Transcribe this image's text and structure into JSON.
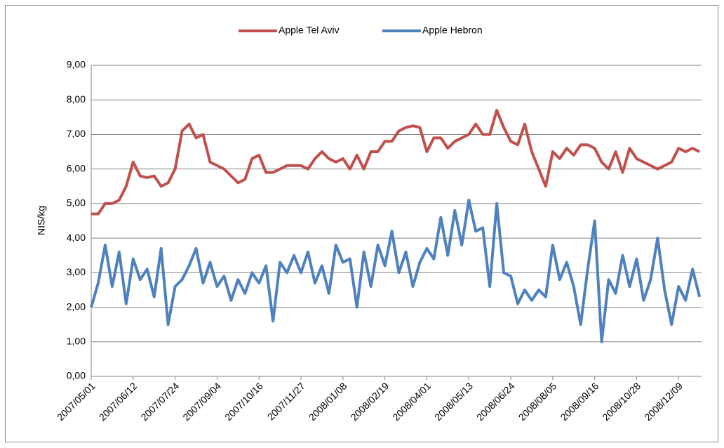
{
  "chart_data": {
    "type": "line",
    "y_label": "NIS/kg",
    "legend": "top",
    "grid": true,
    "ylim": [
      0,
      9
    ],
    "yticks": [
      {
        "value": 0,
        "label": "0,00"
      },
      {
        "value": 1,
        "label": "1,00"
      },
      {
        "value": 2,
        "label": "2,00"
      },
      {
        "value": 3,
        "label": "3,00"
      },
      {
        "value": 4,
        "label": "4,00"
      },
      {
        "value": 5,
        "label": "5,00"
      },
      {
        "value": 6,
        "label": "6,00"
      },
      {
        "value": 7,
        "label": "7,00"
      },
      {
        "value": 8,
        "label": "8,00"
      },
      {
        "value": 9,
        "label": "9,00"
      }
    ],
    "xlim": [
      "2007/05/01",
      "2009/01/01"
    ],
    "xticks": [
      "2007/05/01",
      "2007/06/12",
      "2007/07/24",
      "2007/09/04",
      "2007/10/16",
      "2007/11/27",
      "2008/01/08",
      "2008/02/19",
      "2008/04/01",
      "2008/05/13",
      "2008/06/24",
      "2008/08/05",
      "2008/09/16",
      "2008/10/28",
      "2008/12/09"
    ],
    "x": [
      "2007/05/01",
      "2007/05/08",
      "2007/05/15",
      "2007/05/22",
      "2007/05/29",
      "2007/06/05",
      "2007/06/12",
      "2007/06/19",
      "2007/06/26",
      "2007/07/03",
      "2007/07/10",
      "2007/07/17",
      "2007/07/24",
      "2007/07/31",
      "2007/08/07",
      "2007/08/14",
      "2007/08/21",
      "2007/08/28",
      "2007/09/04",
      "2007/09/11",
      "2007/09/18",
      "2007/09/25",
      "2007/10/02",
      "2007/10/09",
      "2007/10/16",
      "2007/10/23",
      "2007/10/30",
      "2007/11/06",
      "2007/11/13",
      "2007/11/20",
      "2007/11/27",
      "2007/12/04",
      "2007/12/11",
      "2007/12/18",
      "2007/12/25",
      "2008/01/01",
      "2008/01/08",
      "2008/01/15",
      "2008/01/22",
      "2008/01/29",
      "2008/02/05",
      "2008/02/12",
      "2008/02/19",
      "2008/02/26",
      "2008/03/04",
      "2008/03/11",
      "2008/03/18",
      "2008/03/25",
      "2008/04/01",
      "2008/04/08",
      "2008/04/15",
      "2008/04/22",
      "2008/04/29",
      "2008/05/06",
      "2008/05/13",
      "2008/05/20",
      "2008/05/27",
      "2008/06/03",
      "2008/06/10",
      "2008/06/17",
      "2008/06/24",
      "2008/07/01",
      "2008/07/08",
      "2008/07/15",
      "2008/07/22",
      "2008/07/29",
      "2008/08/05",
      "2008/08/12",
      "2008/08/19",
      "2008/08/26",
      "2008/09/02",
      "2008/09/09",
      "2008/09/16",
      "2008/09/23",
      "2008/09/30",
      "2008/10/07",
      "2008/10/14",
      "2008/10/21",
      "2008/10/28",
      "2008/11/04",
      "2008/11/11",
      "2008/11/18",
      "2008/11/25",
      "2008/12/02",
      "2008/12/09",
      "2008/12/16",
      "2008/12/23",
      "2008/12/30"
    ],
    "series": [
      {
        "name": "Apple Tel Aviv",
        "color": "#c0504d",
        "values": [
          4.7,
          4.7,
          5.0,
          5.0,
          5.1,
          5.5,
          6.2,
          5.8,
          5.75,
          5.8,
          5.5,
          5.6,
          6.0,
          7.1,
          7.3,
          6.9,
          7.0,
          6.2,
          6.1,
          6.0,
          5.8,
          5.6,
          5.7,
          6.3,
          6.4,
          5.9,
          5.9,
          6.0,
          6.1,
          6.1,
          6.1,
          6.0,
          6.3,
          6.5,
          6.3,
          6.2,
          6.3,
          6.0,
          6.4,
          6.0,
          6.5,
          6.5,
          6.8,
          6.8,
          7.1,
          7.2,
          7.25,
          7.2,
          6.5,
          6.9,
          6.9,
          6.6,
          6.8,
          6.9,
          7.0,
          7.3,
          7.0,
          7.0,
          7.7,
          7.2,
          6.8,
          6.7,
          7.3,
          6.5,
          6.0,
          5.5,
          6.5,
          6.3,
          6.6,
          6.4,
          6.7,
          6.7,
          6.6,
          6.2,
          6.0,
          6.5,
          5.9,
          6.6,
          6.3,
          6.2,
          6.1,
          6.0,
          6.1,
          6.2,
          6.6,
          6.5,
          6.6,
          6.5
        ]
      },
      {
        "name": "Apple Hebron",
        "color": "#4f81bd",
        "values": [
          2.0,
          2.7,
          3.8,
          2.6,
          3.6,
          2.1,
          3.4,
          2.8,
          3.1,
          2.3,
          3.7,
          1.5,
          2.6,
          2.8,
          3.2,
          3.7,
          2.7,
          3.3,
          2.6,
          2.9,
          2.2,
          2.8,
          2.4,
          3.0,
          2.7,
          3.2,
          1.6,
          3.3,
          3.0,
          3.5,
          3.0,
          3.6,
          2.7,
          3.2,
          2.4,
          3.8,
          3.3,
          3.4,
          2.0,
          3.6,
          2.6,
          3.8,
          3.2,
          4.2,
          3.0,
          3.6,
          2.6,
          3.3,
          3.7,
          3.4,
          4.6,
          3.5,
          4.8,
          3.8,
          5.1,
          4.2,
          4.3,
          2.6,
          5.0,
          3.0,
          2.9,
          2.1,
          2.5,
          2.2,
          2.5,
          2.3,
          3.8,
          2.8,
          3.3,
          2.6,
          1.5,
          3.1,
          4.5,
          1.0,
          2.8,
          2.4,
          3.5,
          2.6,
          3.4,
          2.2,
          2.8,
          4.0,
          2.5,
          1.5,
          2.6,
          2.2,
          3.1,
          2.3
        ]
      }
    ]
  }
}
